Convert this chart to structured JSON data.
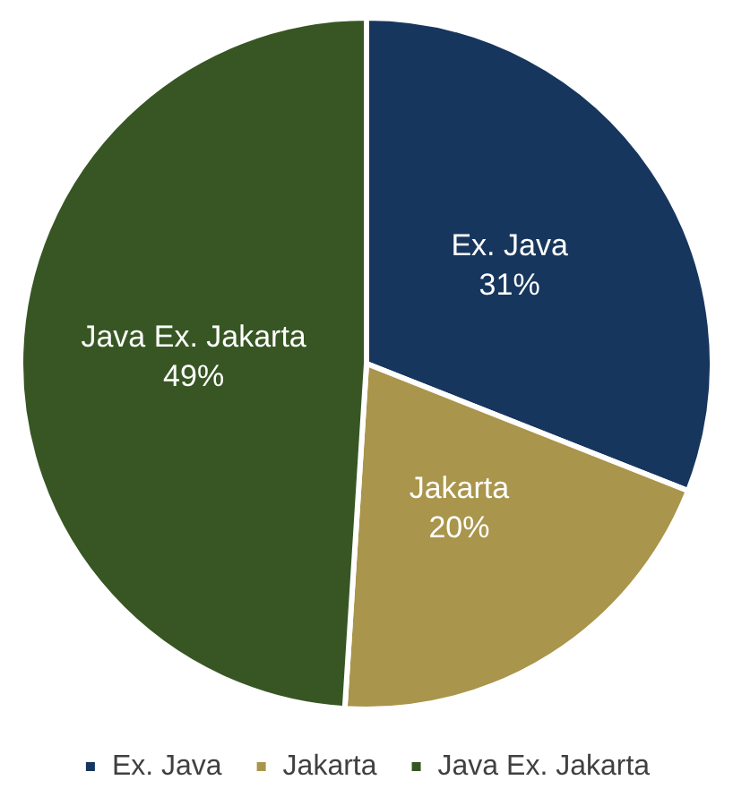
{
  "chart_data": {
    "type": "pie",
    "categories": [
      "Ex. Java",
      "Jakarta",
      "Java Ex. Jakarta"
    ],
    "values": [
      31,
      20,
      49
    ],
    "colors": [
      "#17365d",
      "#a9954b",
      "#375623"
    ],
    "value_labels": [
      "31%",
      "20%",
      "49%"
    ],
    "legend": "bottom"
  }
}
